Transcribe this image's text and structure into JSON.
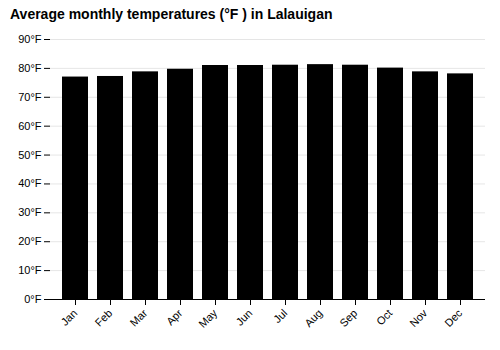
{
  "chart_data": {
    "type": "bar",
    "title": "Average monthly temperatures (°F ) in Lalauigan",
    "categories": [
      "Jan",
      "Feb",
      "Mar",
      "Apr",
      "May",
      "Jun",
      "Jul",
      "Aug",
      "Sep",
      "Oct",
      "Nov",
      "Dec"
    ],
    "values": [
      77.0,
      77.2,
      78.8,
      79.7,
      81.0,
      81.0,
      81.1,
      81.3,
      81.1,
      80.1,
      78.8,
      78.1
    ],
    "ylim": [
      0,
      90
    ],
    "yticks": [
      {
        "value": 0,
        "label": "0°F"
      },
      {
        "value": 10,
        "label": "10°F"
      },
      {
        "value": 20,
        "label": "20°F"
      },
      {
        "value": 30,
        "label": "30°F"
      },
      {
        "value": 40,
        "label": "40°F"
      },
      {
        "value": 50,
        "label": "50°F"
      },
      {
        "value": 60,
        "label": "60°F"
      },
      {
        "value": 70,
        "label": "70°F"
      },
      {
        "value": 80,
        "label": "80°F"
      },
      {
        "value": 90,
        "label": "90°F"
      }
    ],
    "grid": true
  }
}
